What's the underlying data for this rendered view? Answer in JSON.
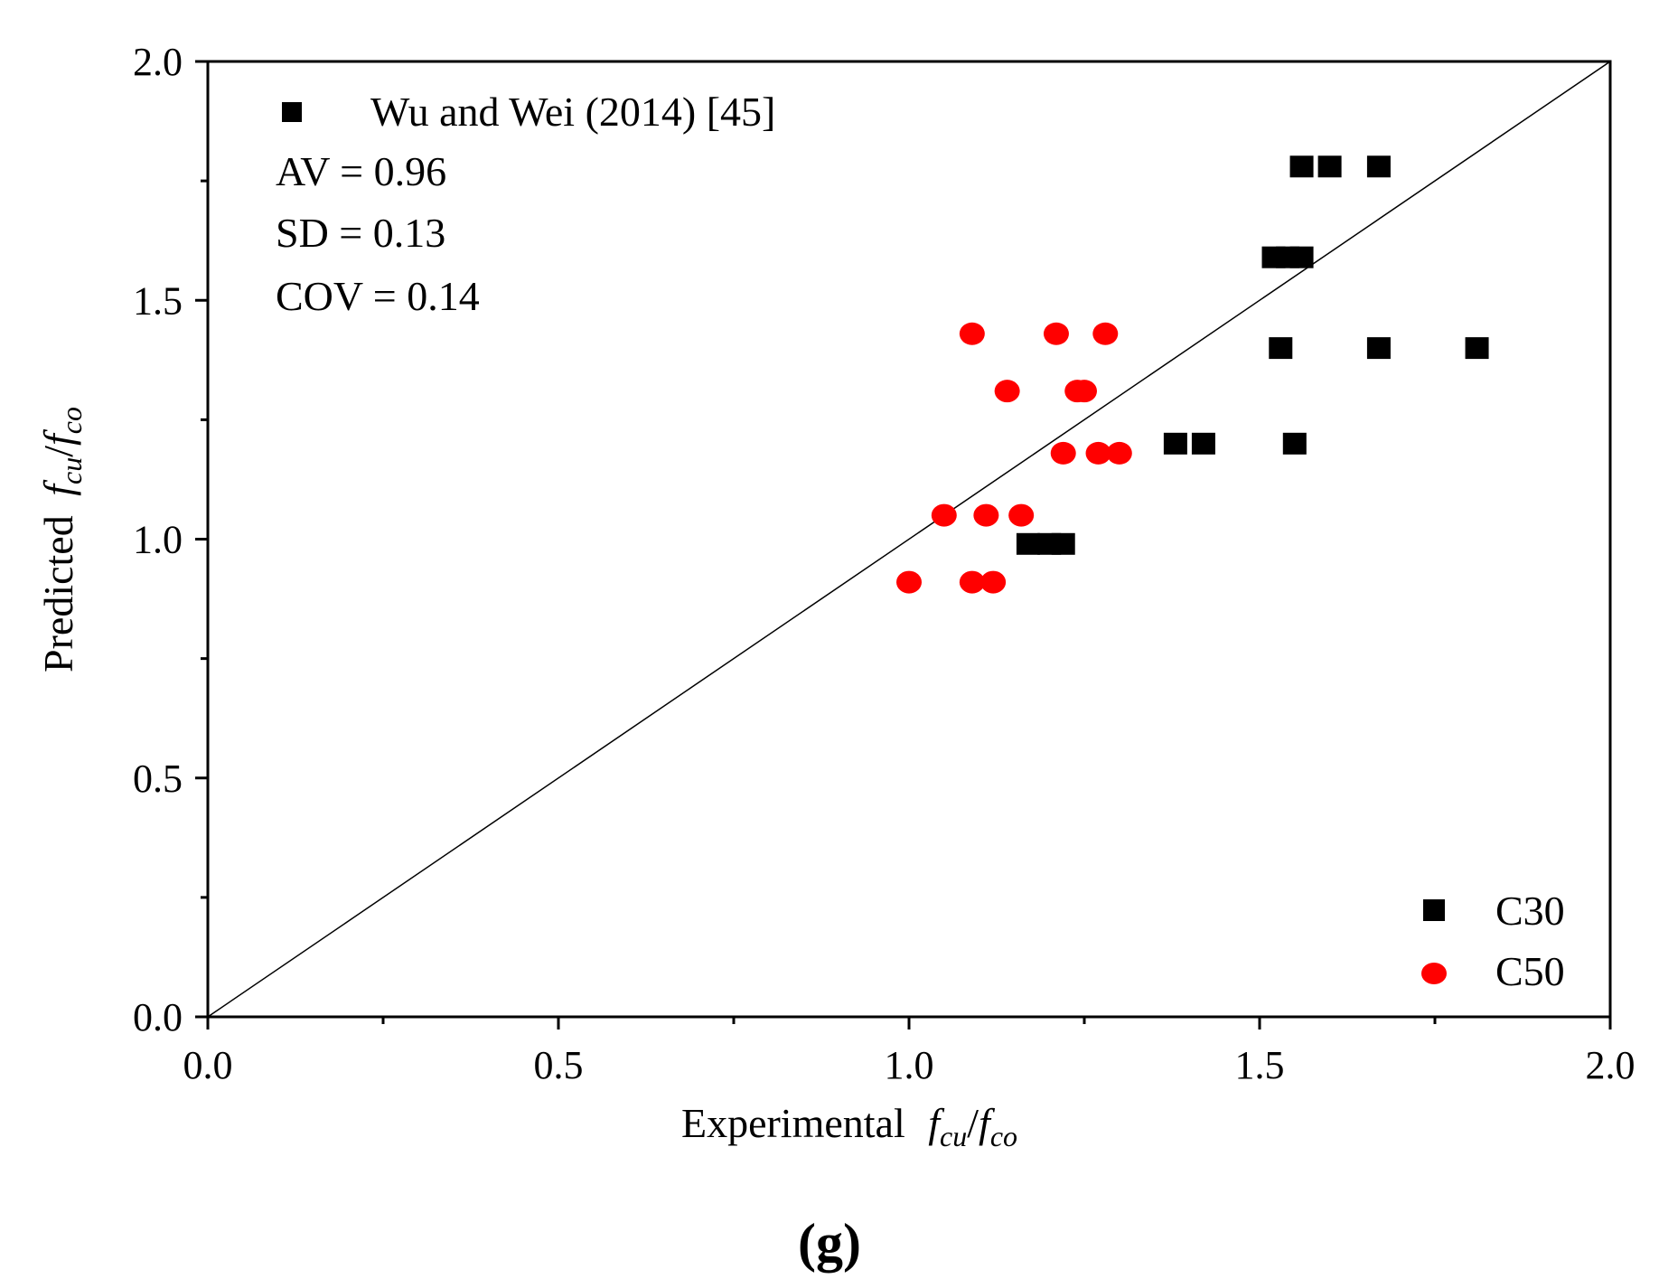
{
  "chart_data": {
    "type": "scatter",
    "xlim": [
      0.0,
      2.0
    ],
    "ylim": [
      0.0,
      2.0
    ],
    "xticks": [
      "0.0",
      "0.5",
      "1.0",
      "1.5",
      "2.0"
    ],
    "yticks": [
      "0.0",
      "0.5",
      "1.0",
      "1.5",
      "2.0"
    ],
    "xlabel": {
      "prefix": "Experimental",
      "f1": "f",
      "sub1": "cu",
      "slash": "/",
      "f2": "f",
      "sub2": "co"
    },
    "ylabel": {
      "prefix": "Predicted",
      "f1": "f",
      "sub1": "cu",
      "slash": "/",
      "f2": "f",
      "sub2": "co"
    },
    "reference_line": {
      "label": "y = x",
      "from": [
        0,
        0
      ],
      "to": [
        2,
        2
      ]
    },
    "annotation": {
      "marker_label": "Wu and Wei (2014) [45]",
      "lines": [
        "AV = 0.96",
        "SD = 0.13",
        "COV = 0.14"
      ]
    },
    "legend_position": "bottom-right",
    "panel_label": "(g)",
    "series": [
      {
        "name": "C30",
        "marker": "square",
        "color": "#000000",
        "points": [
          [
            1.56,
            1.78
          ],
          [
            1.6,
            1.78
          ],
          [
            1.67,
            1.78
          ],
          [
            1.52,
            1.59
          ],
          [
            1.54,
            1.59
          ],
          [
            1.56,
            1.59
          ],
          [
            1.53,
            1.4
          ],
          [
            1.67,
            1.4
          ],
          [
            1.81,
            1.4
          ],
          [
            1.38,
            1.2
          ],
          [
            1.42,
            1.2
          ],
          [
            1.55,
            1.2
          ],
          [
            1.17,
            0.99
          ],
          [
            1.2,
            0.99
          ],
          [
            1.22,
            0.99
          ]
        ]
      },
      {
        "name": "C50",
        "marker": "circle",
        "color": "#ff0000",
        "points": [
          [
            1.09,
            1.43
          ],
          [
            1.21,
            1.43
          ],
          [
            1.28,
            1.43
          ],
          [
            1.14,
            1.31
          ],
          [
            1.24,
            1.31
          ],
          [
            1.25,
            1.31
          ],
          [
            1.22,
            1.18
          ],
          [
            1.27,
            1.18
          ],
          [
            1.3,
            1.18
          ],
          [
            1.05,
            1.05
          ],
          [
            1.11,
            1.05
          ],
          [
            1.16,
            1.05
          ],
          [
            1.0,
            0.91
          ],
          [
            1.09,
            0.91
          ],
          [
            1.12,
            0.91
          ]
        ]
      }
    ]
  }
}
